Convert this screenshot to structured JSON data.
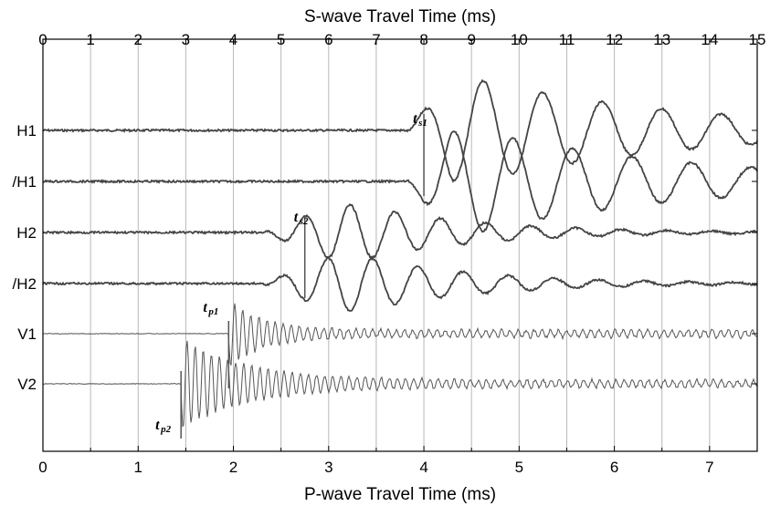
{
  "chart_data": {
    "type": "line",
    "title": "",
    "top_axis": {
      "label": "S-wave Travel Time (ms)",
      "range": [
        0,
        15
      ],
      "ticks": [
        "0",
        "1",
        "2",
        "3",
        "4",
        "5",
        "6",
        "7",
        "8",
        "9",
        "10",
        "11",
        "12",
        "13",
        "14",
        "15"
      ]
    },
    "bottom_axis": {
      "label": "P-wave Travel Time (ms)",
      "range": [
        0,
        7.5
      ],
      "ticks": [
        "0",
        "1",
        "2",
        "3",
        "4",
        "5",
        "6",
        "7"
      ]
    },
    "grid": "vertical lines at bottom-axis half-units",
    "traces": [
      {
        "name": "H1",
        "offset": 0,
        "onset_s_ms": 7.6,
        "pick_s_ms": 8.0,
        "peaks_s_ms": [
          8.0,
          8.8,
          9.2,
          9.9,
          10.5,
          11.0,
          11.6,
          12.2,
          12.8,
          13.2,
          13.8,
          14.3,
          14.8
        ]
      },
      {
        "name": "/H1",
        "offset": 1,
        "onset_s_ms": 7.6,
        "pick_s_ms": 8.0,
        "peaks_s_ms": [
          8.0,
          8.6,
          9.2,
          9.9,
          10.5,
          11.0,
          11.6,
          12.2,
          12.8,
          13.2,
          13.8,
          14.3,
          14.8
        ]
      },
      {
        "name": "H2",
        "offset": 2,
        "onset_s_ms": 4.6,
        "pick_s_ms": 5.5,
        "peaks_s_ms": [
          6.0,
          6.6,
          7.0,
          7.5,
          8.0,
          8.5,
          9.0,
          9.5,
          10.0
        ]
      },
      {
        "name": "/H2",
        "offset": 3,
        "onset_s_ms": 4.6,
        "pick_s_ms": 5.5,
        "peaks_s_ms": [
          6.0,
          6.5,
          7.0,
          7.5,
          8.0,
          8.5,
          9.0,
          9.5,
          10.0
        ]
      },
      {
        "name": "V1",
        "offset": 4,
        "onset_p_ms": 1.95,
        "pick_p_ms": 1.95
      },
      {
        "name": "V2",
        "offset": 5,
        "onset_p_ms": 1.45,
        "pick_p_ms": 1.45
      }
    ],
    "annotations": [
      {
        "main": "t",
        "sub": "s1",
        "trace": "H1",
        "x_s_ms": 8.0
      },
      {
        "main": "t",
        "sub": "s2",
        "trace": "H2",
        "x_s_ms": 5.5
      },
      {
        "main": "t",
        "sub": "p1",
        "trace": "V1",
        "x_p_ms": 1.95
      },
      {
        "main": "t",
        "sub": "p2",
        "trace": "V2",
        "x_p_ms": 1.45
      }
    ]
  }
}
